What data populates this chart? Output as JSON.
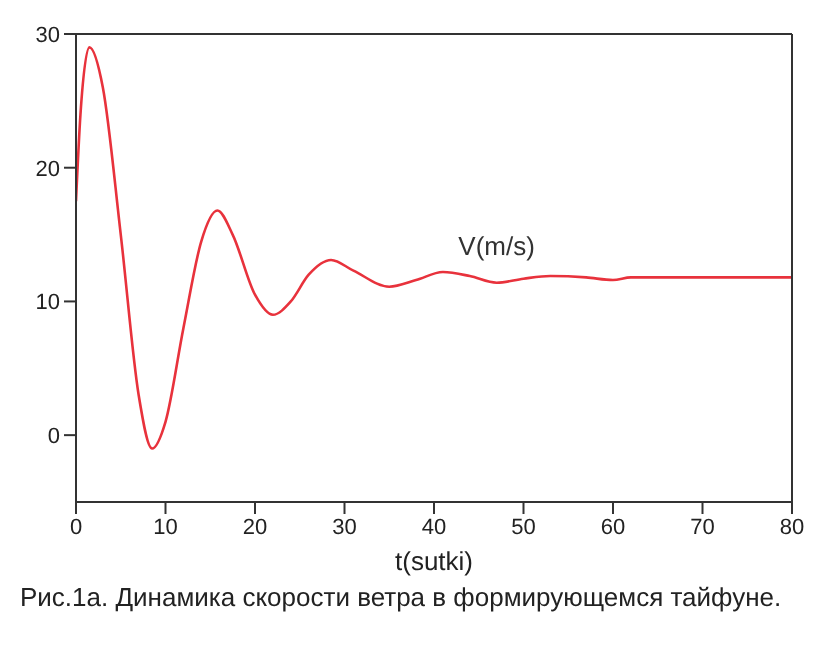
{
  "chart_data": {
    "type": "line",
    "title": "Рис.1а. Динамика скорости ветра в формирующемся тайфуне.",
    "xlabel": "t(sutki)",
    "x": [
      0,
      0.5,
      1.5,
      3,
      5,
      7,
      8.5,
      10,
      12,
      14,
      15.8,
      17.5,
      20,
      22,
      24,
      26,
      28.5,
      31,
      35,
      38,
      41,
      44,
      47,
      50,
      53,
      57,
      60,
      62,
      70,
      80
    ],
    "series": [
      {
        "name": "V(m/s)",
        "color": "#e8323c",
        "values": [
          17.5,
          24,
          29,
          26,
          15,
          3,
          -1,
          1,
          8,
          14.5,
          16.8,
          15,
          10.5,
          9,
          10,
          12,
          13.1,
          12.3,
          11.1,
          11.6,
          12.2,
          11.9,
          11.4,
          11.7,
          11.9,
          11.8,
          11.6,
          11.8,
          11.8,
          11.8
        ]
      }
    ],
    "xlim": [
      0,
      80
    ],
    "xticks": [
      0,
      10,
      20,
      30,
      40,
      50,
      60,
      70,
      80
    ],
    "ylim": [
      -5,
      30
    ],
    "yticks": [
      0,
      10,
      20,
      30
    ],
    "grid": false,
    "marker": "none",
    "line_style": "solid"
  }
}
